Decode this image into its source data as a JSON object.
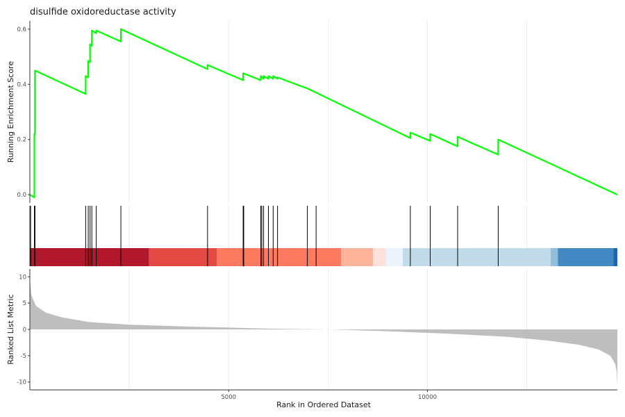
{
  "chart_data": {
    "type": "line",
    "title": "disulfide oxidoreductase activity",
    "x_range": [
      1,
      14777
    ],
    "xlabel": "Rank in Ordered Dataset",
    "x_ticks": [
      5000,
      10000
    ],
    "x_tick_labels": [
      "5000",
      "10000"
    ],
    "x_grid": [
      2500,
      5000,
      7500,
      10000,
      12500
    ],
    "grid": true,
    "running_score": {
      "ylabel": "Running Enrichment Score",
      "ylim": [
        -0.03,
        0.63
      ],
      "y_ticks": [
        0.0,
        0.2,
        0.4,
        0.6
      ],
      "y_tick_labels": [
        "0.0",
        "0.2",
        "0.4",
        "0.6"
      ],
      "line_color": "#00ff00",
      "series": [
        {
          "x": [
            1,
            115,
            115,
            130,
            130,
            1405,
            1405,
            1470,
            1470,
            1515,
            1515,
            1560,
            1560,
            1670,
            1670,
            2290,
            2290,
            4470,
            4470,
            5365,
            5365,
            5810,
            5810,
            5880,
            5880,
            6000,
            6000,
            6120,
            6120,
            6230,
            6230,
            6980,
            6980,
            7200,
            7200,
            9570,
            9570,
            10070,
            10070,
            10760,
            10760,
            11780,
            11780,
            14777
          ],
          "y": [
            0.0,
            -0.01,
            0.22,
            0.22,
            0.45,
            0.365,
            0.43,
            0.425,
            0.485,
            0.48,
            0.545,
            0.54,
            0.595,
            0.585,
            0.595,
            0.555,
            0.6,
            0.455,
            0.47,
            0.415,
            0.44,
            0.415,
            0.43,
            0.42,
            0.43,
            0.42,
            0.43,
            0.42,
            0.43,
            0.42,
            0.425,
            0.385,
            0.385,
            0.37,
            0.37,
            0.205,
            0.225,
            0.195,
            0.22,
            0.175,
            0.21,
            0.145,
            0.2,
            0.0
          ]
        }
      ]
    },
    "gene_hits": [
      20,
      115,
      130,
      1405,
      1470,
      1515,
      1560,
      1670,
      2290,
      4470,
      5365,
      5380,
      5810,
      5835,
      5880,
      6000,
      6120,
      6230,
      6980,
      7200,
      9570,
      10070,
      10760,
      11780
    ],
    "color_bands": [
      {
        "x0": 1,
        "x1": 3000,
        "color": "#b2182b"
      },
      {
        "x0": 3000,
        "x1": 4700,
        "color": "#e34a43"
      },
      {
        "x0": 4700,
        "x1": 7830,
        "color": "#fc7a60"
      },
      {
        "x0": 7830,
        "x1": 8630,
        "color": "#fdb49b"
      },
      {
        "x0": 8630,
        "x1": 8960,
        "color": "#fde1da"
      },
      {
        "x0": 8960,
        "x1": 9380,
        "color": "#edf3fb"
      },
      {
        "x0": 9380,
        "x1": 13100,
        "color": "#c2dbe9"
      },
      {
        "x0": 13100,
        "x1": 13280,
        "color": "#8fbfdd"
      },
      {
        "x0": 13280,
        "x1": 14680,
        "color": "#4389c4"
      },
      {
        "x0": 14680,
        "x1": 14777,
        "color": "#2166ac"
      }
    ],
    "ranked_metric": {
      "ylabel": "Ranked List Metric",
      "ylim": [
        -11.5,
        11.5
      ],
      "y_ticks": [
        -10,
        -5,
        0,
        5,
        10
      ],
      "y_tick_labels": [
        "-10",
        "-5",
        "0",
        "5",
        "10"
      ],
      "fill_color": "#bebebe",
      "profile": {
        "x": [
          1,
          40,
          150,
          400,
          800,
          1500,
          2500,
          4000,
          6000,
          7500,
          8000,
          9000,
          10500,
          12000,
          13000,
          13800,
          14300,
          14600,
          14720,
          14760,
          14777
        ],
        "y": [
          9.5,
          6.5,
          4.5,
          3.2,
          2.3,
          1.4,
          0.9,
          0.55,
          0.15,
          0.0,
          -0.1,
          -0.35,
          -0.8,
          -1.4,
          -2.1,
          -2.9,
          -3.8,
          -5.0,
          -6.5,
          -8.0,
          -10.8
        ]
      }
    }
  }
}
